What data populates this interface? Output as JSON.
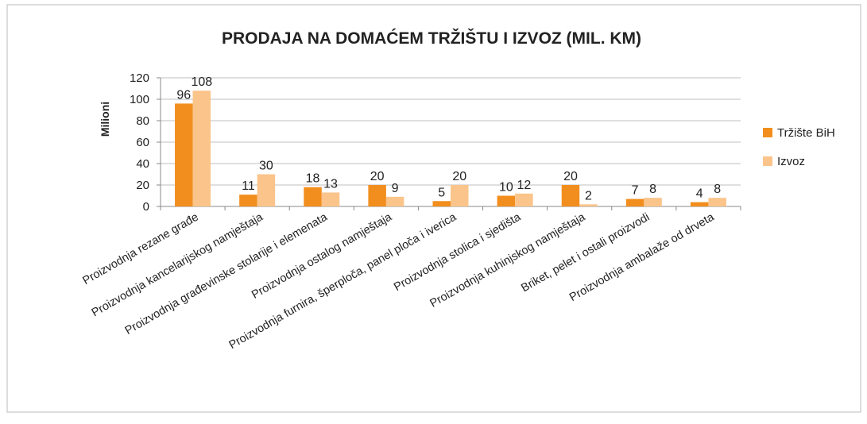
{
  "chart_data": {
    "type": "bar",
    "title": "PRODAJA NA DOMAĆEM TRŽIŠTU I IZVOZ (MIL. KM)",
    "y_label": "Milioni",
    "categories": [
      "Proizvodnja rezane građe",
      "Proizvodnja kancelarijskog namještaja",
      "Proizvodnja građevinske stolarije i elemenata",
      "Proizvodnja ostalog namještaja",
      "Proizvodnja furnira, šperploča, panel ploča i iverica",
      "Proizvodnja stolica i sjedišta",
      "Proizvodnja kuhinjskog namještaja",
      "Briket, pelet i ostali proizvodi",
      "Proizvodnja ambalaže od drveta"
    ],
    "series": [
      {
        "name": "Tržište BiH",
        "color": "#f28e1e",
        "values": [
          96,
          11,
          18,
          20,
          5,
          10,
          20,
          7,
          4
        ]
      },
      {
        "name": "Izvoz",
        "color": "#fbc48a",
        "values": [
          108,
          30,
          13,
          9,
          20,
          12,
          2,
          8,
          8
        ]
      }
    ],
    "ylim": [
      0,
      120
    ],
    "yticks": [
      0,
      20,
      40,
      60,
      80,
      100,
      120
    ],
    "grid": true,
    "legend": "right"
  }
}
